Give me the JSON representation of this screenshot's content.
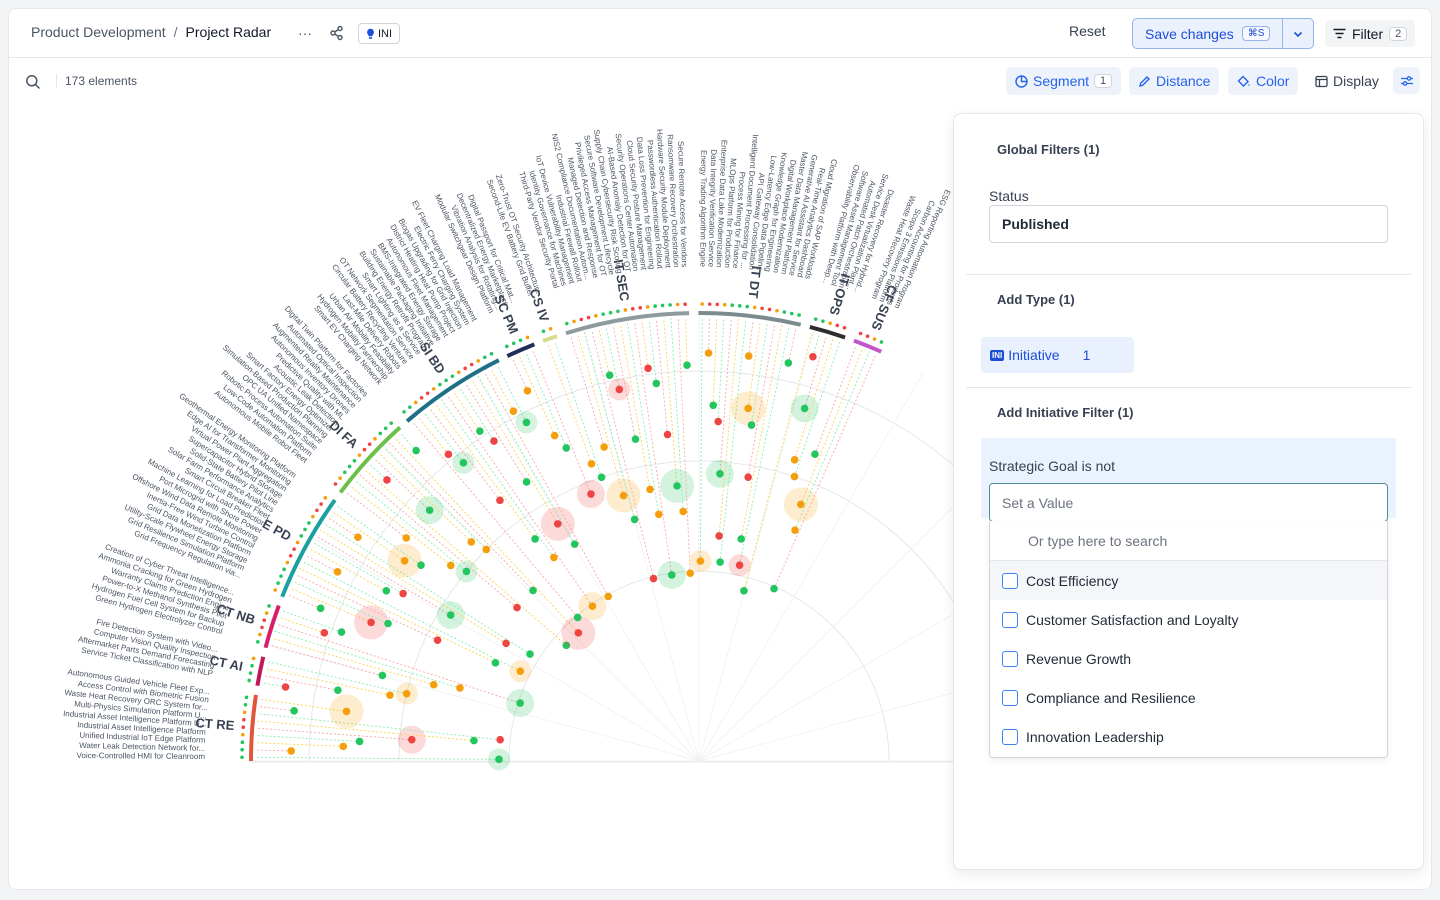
{
  "breadcrumb": {
    "parent": "Product Development",
    "separator": "/",
    "current": "Project Radar"
  },
  "header": {
    "more_label": "···",
    "type_badge": "INI",
    "reset_label": "Reset",
    "save_label": "Save changes",
    "save_shortcut": "⌘S",
    "filter_label": "Filter",
    "filter_count": "2"
  },
  "toolbar": {
    "element_count": "173 elements",
    "segment_label": "Segment",
    "segment_count": "1",
    "distance_label": "Distance",
    "color_label": "Color",
    "display_label": "Display"
  },
  "radar": {
    "segments": [
      {
        "code": "CT RE",
        "color": "#e2553a",
        "items": [
          "Voice-Controlled HMI for Cleanroom",
          "Water Leak Detection Network for...",
          "Unified Industrial IoT Edge Platform",
          "Industrial Asset Intelligence Platform",
          "Industrial Asset Intelligence Platform U...",
          "Multi-Physics Simulation Platform U...",
          "Waste Heat Recovery ORC System for...",
          "Access Control with Biometric Fusion",
          "Autonomous Guided Vehicle Fleet Exp..."
        ]
      },
      {
        "code": "CT AI",
        "color": "#c2185b",
        "items": [
          "Service Ticket Classification with NLP",
          "Aftermarket Parts Demand Forecasting",
          "Computer Vision Quality Inspection",
          "Fire Detection System with Video..."
        ]
      },
      {
        "code": "CT NB",
        "color": "#d61f69",
        "items": [
          "Green Hydrogen Electrolyzer Control",
          "Hydrogen Fuel Cell System for Backup",
          "Power-to-X Methanol Synthesis Pilot",
          "Warranty Claims Prediction Engine",
          "Ammonia Cracking for Green Hydrogen",
          "Creation of Cyber Threat Intelligence..."
        ]
      },
      {
        "code": "E PD",
        "color": "#1aa0a0",
        "items": [
          "Grid Frequency Regulation via...",
          "Grid Resilience Simulation Platform",
          "Utility-Scale Flywheel Energy Storage",
          "Grid Data Monetization Platform",
          "Inertia-Free Wind Turbine Control",
          "Offshore Wind Data Remote Monitoring",
          "Port Microgrid with Shore Power",
          "Machine Learning for Load Prediction",
          "Smart Circuit Breaker Fleet",
          "Solar Farm Performance Analytics",
          "Solid-State Battery Pilot Line",
          "Supercapacitor Hybrid Storage",
          "Virtual Power Plant Aggregation",
          "Edge AI for Transformer Monitoring",
          "Geothermal Energy Monitoring Platform"
        ]
      },
      {
        "code": "DI FA",
        "color": "#6cc04a",
        "items": [
          "Autonomous Mobile Robot Fleet",
          "Low-Code Automation Platform",
          "Robotic Process Automation Suite",
          "OPC UA Unified Namespace",
          "Simulation-Based Production Planning",
          "Smart Factory Energy Optimizer",
          "Acoustic Leak Detection",
          "Predictive Quality with ML",
          "Autonomous Inventory Drones",
          "Augmented Reality Maintenance",
          "Automated Optical Inspection",
          "Digital Twin Platform for Factories"
        ]
      },
      {
        "code": "SI BD",
        "color": "#1f6f86",
        "items": [
          "Smart EV Charging Network",
          "Hydrogen Mobility Partnership",
          "Urban Air Mobility Feasibility",
          "Last-Mile Delivery Robots",
          "Circular Battery Recycling Venture",
          "OT Network Segmentation Service",
          "Smart Lighting as a Service",
          "Building Energy Retrofit Program",
          "Sustainable Packaging Initiative",
          "BMS-Integrated Energy Storage",
          "Autonomous Fleet Management",
          "District Heating Heat Pump Project",
          "Biogas Upgrading for Grid Injection",
          "Electric Ferry Charging System",
          "EV Fleet Charging Load Management"
        ]
      },
      {
        "code": "SC PM",
        "color": "#1f2f5a",
        "items": [
          "Modular Switchgear Design Platform",
          "Vibration Analysis for Rotating...",
          "Decentralized Energy Marketplace",
          "Digital Passport for Critical Mat..."
        ]
      },
      {
        "code": "CS IV",
        "color": "#d6dc8c",
        "items": [
          "Second-Life EV Battery Grid Buffer",
          "Zero-Trust OT Security Architecture"
        ]
      },
      {
        "code": "IT SEC",
        "color": "#8e9a9e",
        "items": [
          "Third-Party Vendor Security Portal",
          "Identity Governance for Machines",
          "IoT Device Vulnerability Management",
          "Industrial Firewall Rollout",
          "NIS2 Compliance Documentation Autom...",
          "Managed Detection and Response",
          "Privileged Access Management for OT",
          "Secure Software Development Lifecycle",
          "Supply Chain Cybersecurity Risk Scoring",
          "AI-Based Anomaly Detection for OT",
          "Security Operations Center Automation",
          "Cloud Security Posture Management",
          "Data Loss Prevention for Engineering",
          "Passwordless Authentication Rollout",
          "Hardware Security Module Deployment",
          "Ransomware Recovery Orchestration",
          "Secure Remote Access for Vendors"
        ]
      },
      {
        "code": "IT DT",
        "color": "#7b8b8e",
        "items": [
          "Energy Trading Algorithm Engine",
          "Data Integrity Verification Service",
          "Enterprise Data Lake Modernization",
          "MLOps Platform for Production",
          "Process Mining for Finance",
          "Intelligent Document Processing for ...",
          "API Gateway Consolidation",
          "Low-Latency Edge Data Pipeline",
          "Knowledge Graph for Engineering",
          "Digital Workplace Modernization",
          "Master Data Management Platform",
          "Generative AI Assistant for Service",
          "Real-Time Analytics Dashboard",
          "Cloud Migration of SAP Workloads"
        ]
      },
      {
        "code": "IT OPS",
        "color": "#2e2e2e",
        "items": [
          "Observability Platform with Deep...",
          "Software Asset Management Tool",
          "Automated Patch Orchestration",
          "Service Desk Virtualization Plant...",
          "Disaster Recovery for Hybrid..."
        ]
      },
      {
        "code": "CF SUS",
        "color": "#c255c9",
        "items": [
          "Waste Heat Recovery Program",
          "Scope 3 Emissions Platform",
          "Carbon Accounting for Products",
          "ESG Reporting Automation Program"
        ]
      }
    ]
  },
  "panel": {
    "global_filters_title": "Global Filters (1)",
    "status_label": "Status",
    "status_value": "Published",
    "add_type_title": "Add Type (1)",
    "type_badge": "INI",
    "type_label": "Initiative",
    "type_count": "1",
    "initiative_filter_title": "Add Initiative Filter (1)",
    "goal_label": "Strategic Goal is not",
    "goal_placeholder": "Set a Value",
    "search_placeholder": "Or type here to search",
    "options": [
      "Cost Efficiency",
      "Customer Satisfaction and Loyalty",
      "Revenue Growth",
      "Compliance and Resilience",
      "Innovation Leadership"
    ]
  }
}
